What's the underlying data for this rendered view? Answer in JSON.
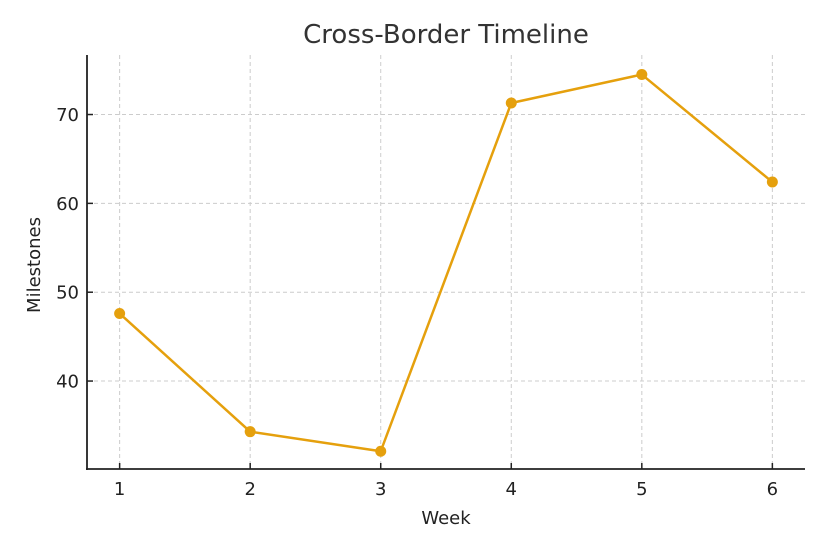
{
  "chart_data": {
    "type": "line",
    "title": "Cross-Border Timeline",
    "xlabel": "Week",
    "ylabel": "Milestones",
    "x": [
      1,
      2,
      3,
      4,
      5,
      6
    ],
    "series": [
      {
        "name": "Milestones",
        "color": "#E5A00D",
        "marker": "circle",
        "values": [
          47.6,
          34.3,
          32.1,
          71.3,
          74.5,
          62.4
        ]
      }
    ],
    "xticks": [
      1,
      2,
      3,
      4,
      5,
      6
    ],
    "yticks": [
      40,
      50,
      60,
      70
    ],
    "xlim": [
      0.75,
      6.25
    ],
    "ylim": [
      30.1,
      76.7
    ],
    "grid": true,
    "legend": null
  }
}
